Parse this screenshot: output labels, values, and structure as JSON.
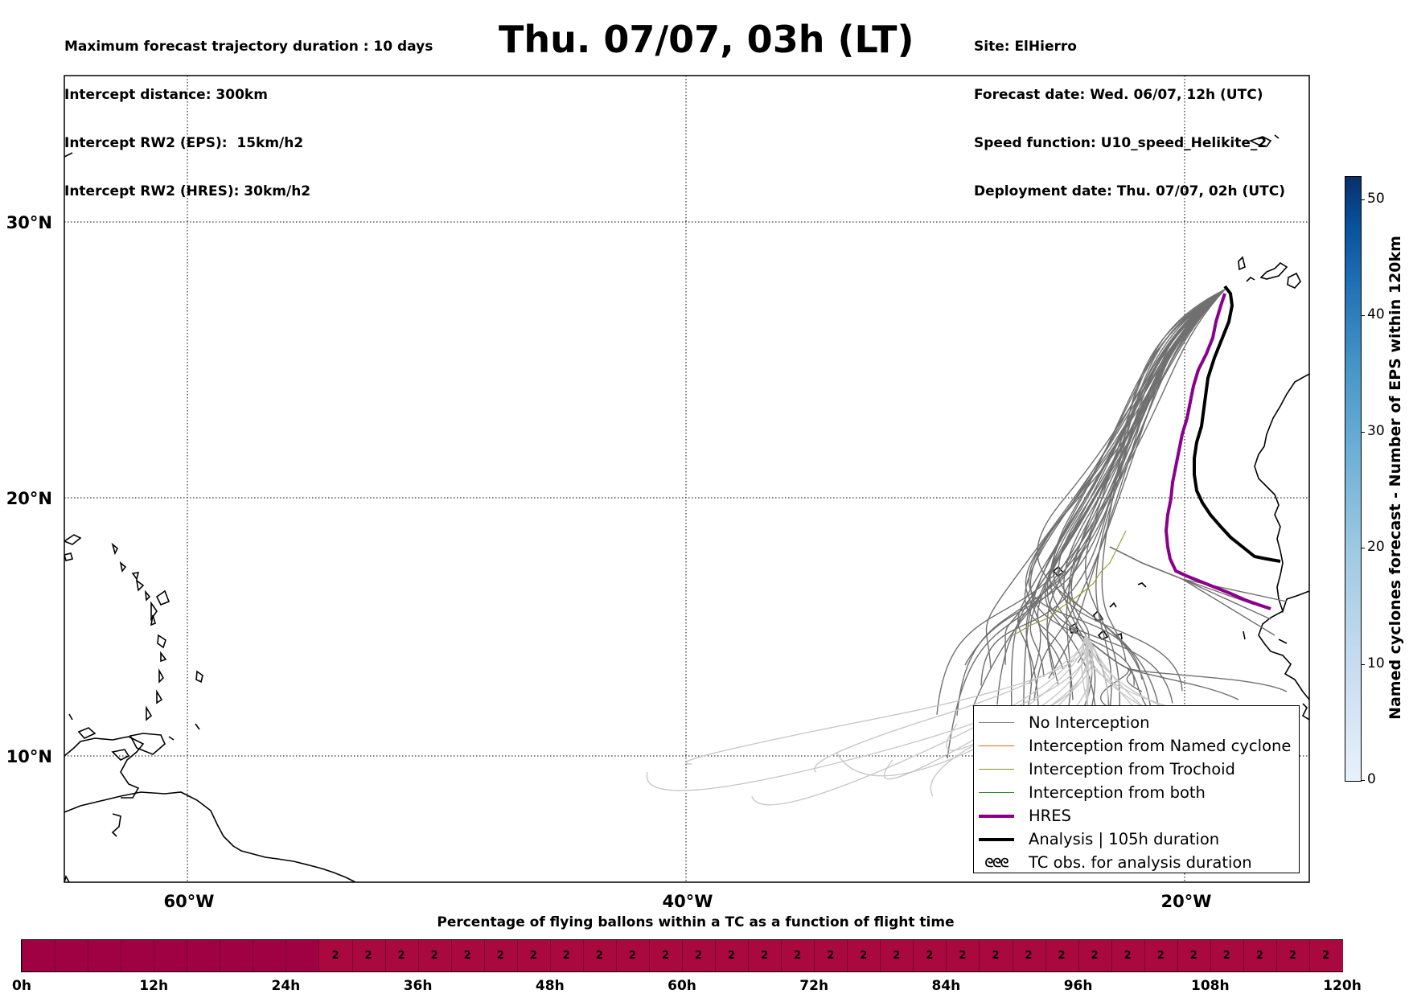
{
  "header": {
    "left_lines": [
      "Maximum forecast trajectory duration : 10 days",
      "Intercept distance: 300km",
      "Intercept RW2 (EPS):  15km/h2",
      "Intercept RW2 (HRES): 30km/h2"
    ],
    "title": "Thu. 07/07, 03h (LT)",
    "right_lines": [
      "Site: ElHierro",
      "Forecast date: Wed. 06/07, 12h (UTC)",
      "Speed function: U10_speed_Helikite_2",
      "Deployment date: Thu. 07/07, 02h (UTC)"
    ]
  },
  "map": {
    "lat_labels": [
      "30°N",
      "20°N",
      "10°N"
    ],
    "lon_labels": [
      "60°W",
      "40°W",
      "20°W"
    ]
  },
  "legend": {
    "items": [
      {
        "label": "No Interception",
        "color": "#808080",
        "style": "thin"
      },
      {
        "label": "Interception from Named cyclone",
        "color": "#ff5a1e",
        "style": "thin"
      },
      {
        "label": "Interception from Trochoid",
        "color": "#8a8a2a",
        "style": "thin"
      },
      {
        "label": "Interception from both",
        "color": "#2e8b2e",
        "style": "thin"
      },
      {
        "label": "HRES",
        "color": "#8b008b",
        "style": "thick"
      },
      {
        "label": "Analysis | 105h duration",
        "color": "#000000",
        "style": "thick"
      },
      {
        "label": "TC obs. for analysis duration",
        "color": "#000000",
        "style": "symbol",
        "symbol": "ᘓᘓᘓ"
      }
    ]
  },
  "colorbar": {
    "title": "Named cyclones forecast - Number of EPS within 120km",
    "ticks": [
      "0",
      "10",
      "20",
      "30",
      "40",
      "50"
    ],
    "range": [
      0,
      52
    ]
  },
  "bottom": {
    "title": "Percentage of flying ballons within a TC as a function of flight time",
    "cell_value": "2",
    "ticks": [
      "0h",
      "12h",
      "24h",
      "36h",
      "48h",
      "60h",
      "72h",
      "84h",
      "96h",
      "108h",
      "120h"
    ]
  }
}
